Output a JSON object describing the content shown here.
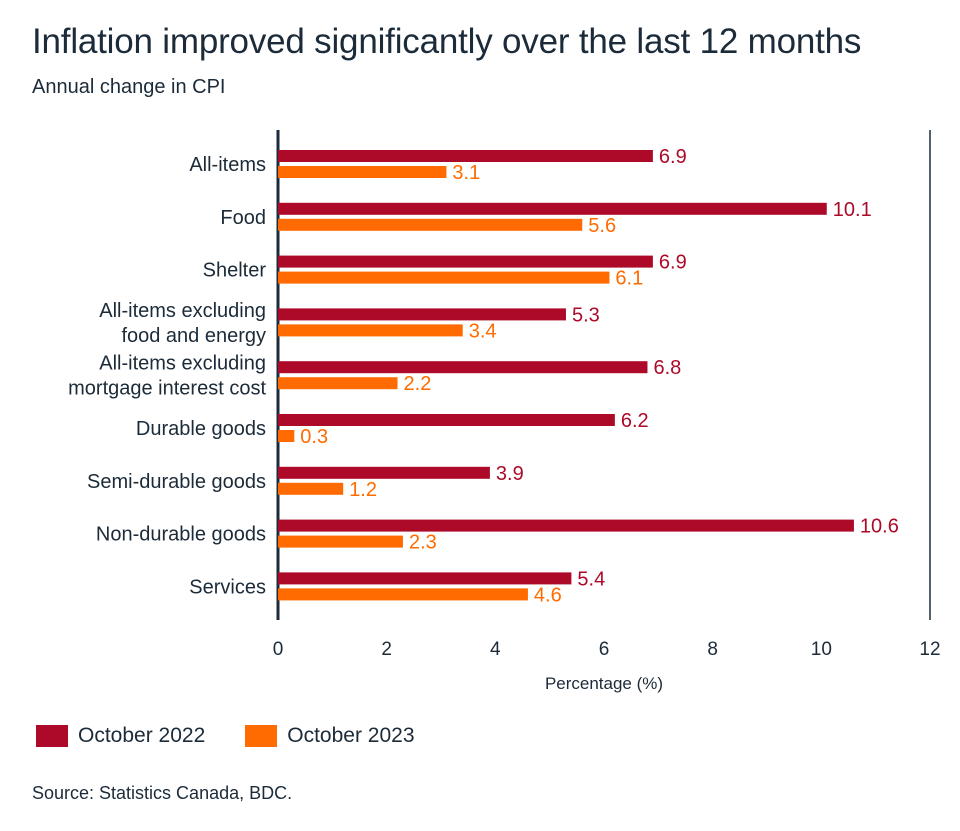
{
  "header": {
    "title": "Inflation improved significantly over the last 12 months",
    "subtitle": "Annual change in CPI"
  },
  "source": "Source: Statistics Canada, BDC.",
  "colors": {
    "oct2022": "#ad0a2a",
    "oct2023": "#ff6b00",
    "axis": "#1c2b39"
  },
  "chart_data": {
    "type": "bar",
    "orientation": "horizontal",
    "title": "Inflation improved significantly over the last 12 months",
    "subtitle": "Annual change in CPI",
    "xlabel": "Percentage (%)",
    "ylabel": "",
    "xlim": [
      0,
      12
    ],
    "xticks": [
      "0",
      "2",
      "4",
      "6",
      "8",
      "10",
      "12"
    ],
    "grid": false,
    "legend_position": "bottom-left",
    "categories": [
      [
        "All-items"
      ],
      [
        "Food"
      ],
      [
        "Shelter"
      ],
      [
        "All-items excluding",
        "food and energy"
      ],
      [
        "All-items excluding",
        "mortgage interest cost"
      ],
      [
        "Durable goods"
      ],
      [
        "Semi-durable goods"
      ],
      [
        "Non-durable goods"
      ],
      [
        "Services"
      ]
    ],
    "series": [
      {
        "name": "October 2022",
        "values": [
          6.9,
          10.1,
          6.9,
          5.3,
          6.8,
          6.2,
          3.9,
          10.6,
          5.4
        ],
        "labels": [
          "6.9",
          "10.1",
          "6.9",
          "5.3",
          "6.8",
          "6.2",
          "3.9",
          "10.6",
          "5.4"
        ]
      },
      {
        "name": "October 2023",
        "values": [
          3.1,
          5.6,
          6.1,
          3.4,
          2.2,
          0.3,
          1.2,
          2.3,
          4.6
        ],
        "labels": [
          "3.1",
          "5.6",
          "6.1",
          "3.4",
          "2.2",
          "0.3",
          "1.2",
          "2.3",
          "4.6"
        ]
      }
    ]
  }
}
